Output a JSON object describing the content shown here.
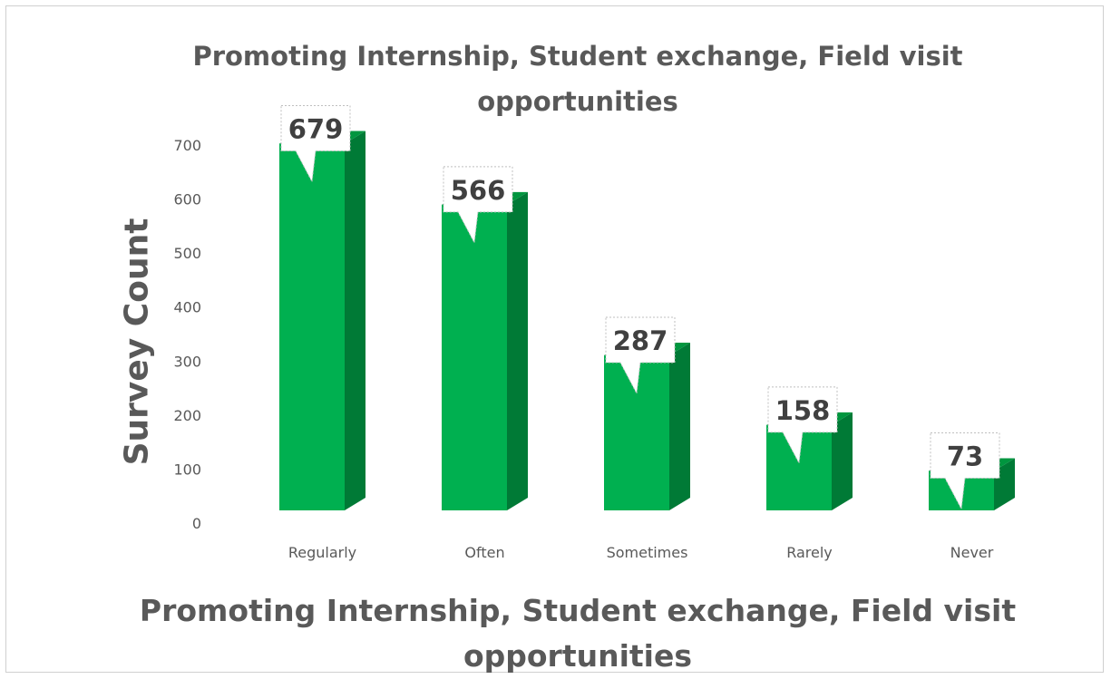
{
  "chart_data": {
    "type": "bar",
    "title": "Promoting Internship, Student exchange, Field visit opportunities",
    "xlabel": "Promoting Internship, Student exchange, Field visit opportunities",
    "ylabel": "Survey Count",
    "categories": [
      "Regularly",
      "Often",
      "Sometimes",
      "Rarely",
      "Never"
    ],
    "values": [
      679,
      566,
      287,
      158,
      73
    ],
    "ylim": [
      0,
      700
    ],
    "yticks": [
      0,
      100,
      200,
      300,
      400,
      500,
      600,
      700
    ],
    "grid": false,
    "legend": "none",
    "style": "3d-column",
    "colors": {
      "front": "#00b050",
      "side": "#007a36",
      "top": "#00963f"
    }
  }
}
